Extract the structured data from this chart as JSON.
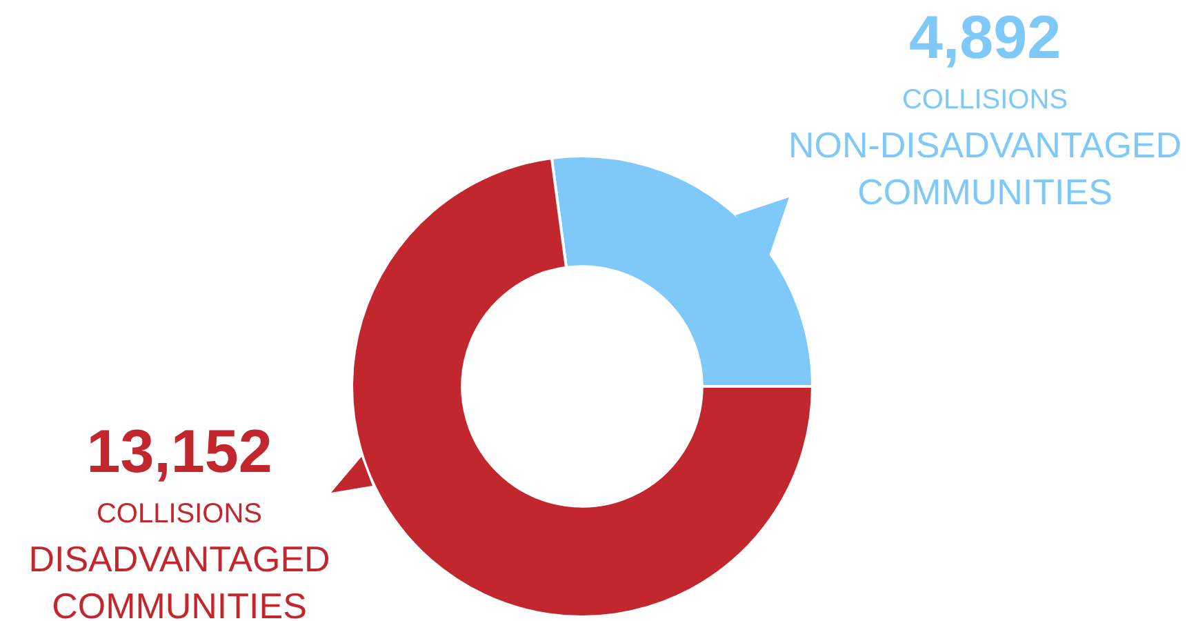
{
  "chart_data": {
    "type": "donut",
    "categories": [
      "NON-DISADVANTAGED COMMUNITIES",
      "DISADVANTAGED COMMUNITIES"
    ],
    "values": [
      4892,
      13152
    ],
    "colors": [
      "#7fc9f8",
      "#c1272d"
    ],
    "value_labels": [
      "4,892",
      "13,152"
    ],
    "annotations": [
      {
        "text": "COLLISIONS",
        "x": "NON-DISADVANTAGED COMMUNITIES"
      },
      {
        "text": "COLLISIONS",
        "x": "DISADVANTAGED COMMUNITIES"
      }
    ],
    "legend": false
  }
}
